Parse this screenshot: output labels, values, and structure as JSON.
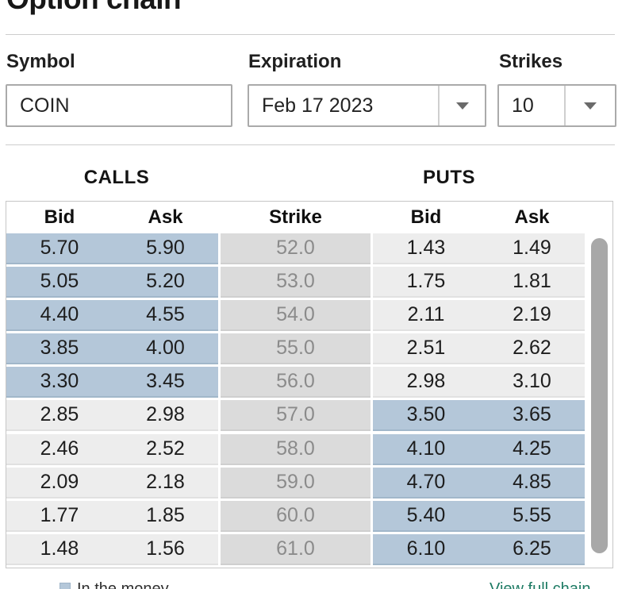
{
  "title": "Option chain",
  "form": {
    "symbol": {
      "label": "Symbol",
      "value": "COIN"
    },
    "expiration": {
      "label": "Expiration",
      "value": "Feb 17 2023"
    },
    "strikes": {
      "label": "Strikes",
      "value": "10"
    }
  },
  "table": {
    "calls_label": "CALLS",
    "puts_label": "PUTS",
    "columns": [
      "Bid",
      "Ask",
      "Strike",
      "Bid",
      "Ask"
    ],
    "rows": [
      {
        "call_bid": "5.70",
        "call_ask": "5.90",
        "strike": "52.0",
        "put_bid": "1.43",
        "put_ask": "1.49",
        "itm": "calls"
      },
      {
        "call_bid": "5.05",
        "call_ask": "5.20",
        "strike": "53.0",
        "put_bid": "1.75",
        "put_ask": "1.81",
        "itm": "calls"
      },
      {
        "call_bid": "4.40",
        "call_ask": "4.55",
        "strike": "54.0",
        "put_bid": "2.11",
        "put_ask": "2.19",
        "itm": "calls"
      },
      {
        "call_bid": "3.85",
        "call_ask": "4.00",
        "strike": "55.0",
        "put_bid": "2.51",
        "put_ask": "2.62",
        "itm": "calls"
      },
      {
        "call_bid": "3.30",
        "call_ask": "3.45",
        "strike": "56.0",
        "put_bid": "2.98",
        "put_ask": "3.10",
        "itm": "calls"
      },
      {
        "call_bid": "2.85",
        "call_ask": "2.98",
        "strike": "57.0",
        "put_bid": "3.50",
        "put_ask": "3.65",
        "itm": "puts"
      },
      {
        "call_bid": "2.46",
        "call_ask": "2.52",
        "strike": "58.0",
        "put_bid": "4.10",
        "put_ask": "4.25",
        "itm": "puts"
      },
      {
        "call_bid": "2.09",
        "call_ask": "2.18",
        "strike": "59.0",
        "put_bid": "4.70",
        "put_ask": "4.85",
        "itm": "puts"
      },
      {
        "call_bid": "1.77",
        "call_ask": "1.85",
        "strike": "60.0",
        "put_bid": "5.40",
        "put_ask": "5.55",
        "itm": "puts"
      },
      {
        "call_bid": "1.48",
        "call_ask": "1.56",
        "strike": "61.0",
        "put_bid": "6.10",
        "put_ask": "6.25",
        "itm": "puts"
      }
    ]
  },
  "legend": {
    "in_the_money": "In the money"
  },
  "footer": {
    "view_full_chain": "View full chain"
  },
  "icons": {
    "expiration_dropdown": "chevron-down-icon",
    "strikes_dropdown": "chevron-down-icon",
    "itm_swatch": "in-the-money-swatch"
  },
  "colors": {
    "itm_highlight": "#b4c7d9",
    "strike_column": "#dbdbdb",
    "row_default": "#ededed",
    "strike_text": "#8b8b8b",
    "link": "#1e7b64",
    "scrollbar_thumb": "#a8a8a8"
  }
}
